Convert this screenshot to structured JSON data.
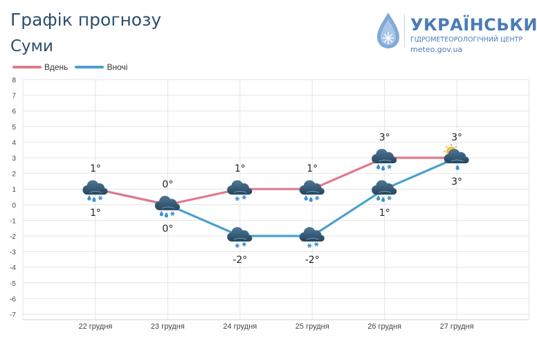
{
  "header": {
    "title": "Графік прогнозу",
    "city": "Суми"
  },
  "logo": {
    "name": "УКРАЇНСЬКИЙ",
    "subtitle": "ГІДРОМЕТЕОРОЛОГІЧНИЙ ЦЕНТР",
    "site": "meteo.gov.ua",
    "color": "#4a7bb7"
  },
  "chart_data": {
    "type": "line",
    "title": "Графік прогнозу",
    "subtitle": "Суми",
    "categories": [
      "22 грудня",
      "23 грудня",
      "24 грудня",
      "25 грудня",
      "26 грудня",
      "27 грудня"
    ],
    "series": [
      {
        "name": "Вдень",
        "color": "#e07a8c",
        "values": [
          1,
          0,
          1,
          1,
          3,
          3
        ],
        "labels": [
          "1°",
          "0°",
          "1°",
          "1°",
          "3°",
          "3°"
        ],
        "icons": [
          "cloud-snow-rain-icon",
          "cloud-snow-rain-icon",
          "cloud-snow-icon",
          "cloud-snow-rain-icon",
          "cloud-snow-rain-icon",
          "sun-cloud-rain-icon"
        ]
      },
      {
        "name": "Вночі",
        "color": "#4aa0d0",
        "values": [
          1,
          0,
          -2,
          -2,
          1,
          3
        ],
        "labels": [
          "1°",
          "0°",
          "-2°",
          "-2°",
          "1°",
          "3°"
        ],
        "icons": [
          "cloud-snow-rain-icon",
          "cloud-snow-rain-icon",
          "cloud-snow-icon",
          "cloud-snow-icon",
          "cloud-snow-rain-icon",
          "sun-cloud-rain-icon"
        ]
      }
    ],
    "ylim": [
      -7,
      8
    ],
    "yticks": [
      8,
      7,
      6,
      5,
      4,
      3,
      2,
      1,
      0,
      -1,
      -2,
      -3,
      -4,
      -5,
      -6,
      -7
    ],
    "grid": true,
    "legend": "top-left"
  }
}
